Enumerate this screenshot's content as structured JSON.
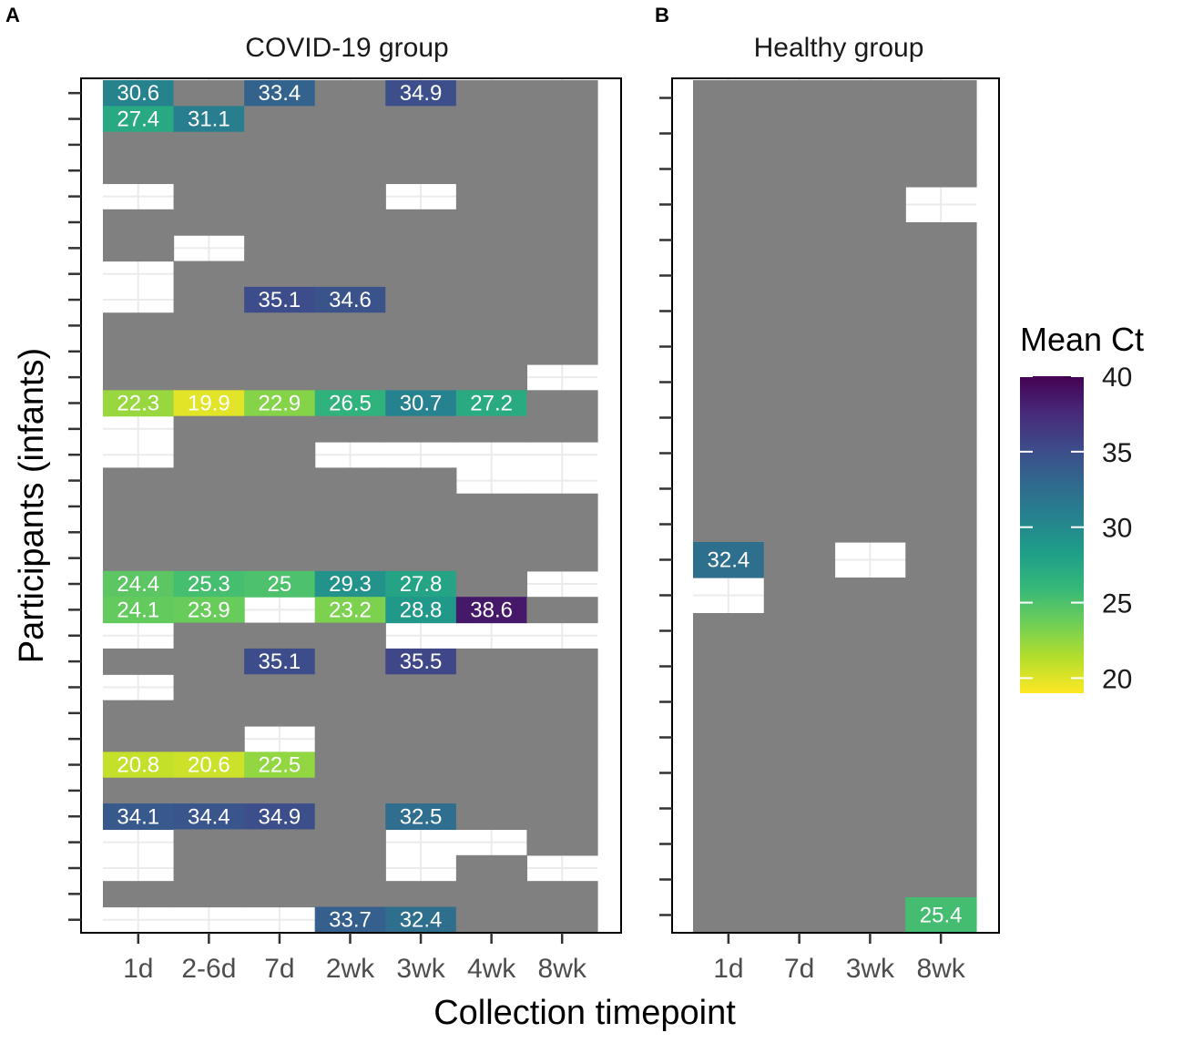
{
  "chart_data": {
    "type": "heatmap",
    "xlabel": "Collection timepoint",
    "ylabel": "Participants (infants)",
    "legend": {
      "title": "Mean Ct",
      "min": 19,
      "max": 40,
      "ticks": [
        20,
        25,
        30,
        35,
        40
      ],
      "colors": [
        "#FDE725",
        "#B5DE2B",
        "#6ECE58",
        "#35B779",
        "#1F9E89",
        "#26828E",
        "#31688E",
        "#3E4989",
        "#482878",
        "#440154"
      ],
      "missing_color": "#808080"
    },
    "panels": [
      {
        "letter": "A",
        "title": "COVID-19 group",
        "categories": [
          "1d",
          "2-6d",
          "7d",
          "2wk",
          "3wk",
          "4wk",
          "8wk"
        ],
        "row_count": 33,
        "value_rows": [
          [
            30.6,
            null,
            33.4,
            null,
            34.9,
            null,
            null
          ],
          [
            27.4,
            31.1,
            null,
            null,
            null,
            null,
            null
          ],
          [
            null,
            null,
            null,
            null,
            null,
            null,
            null
          ],
          [
            null,
            null,
            null,
            null,
            null,
            null,
            null
          ],
          [
            null,
            null,
            null,
            null,
            null,
            null,
            null
          ],
          [
            null,
            null,
            null,
            null,
            null,
            null,
            null
          ],
          [
            null,
            null,
            null,
            null,
            null,
            null,
            null
          ],
          [
            null,
            null,
            null,
            null,
            null,
            null,
            null
          ],
          [
            null,
            null,
            35.1,
            34.6,
            null,
            null,
            null
          ],
          [
            null,
            null,
            null,
            null,
            null,
            null,
            null
          ],
          [
            null,
            null,
            null,
            null,
            null,
            null,
            null
          ],
          [
            null,
            null,
            null,
            null,
            null,
            null,
            null
          ],
          [
            22.3,
            19.9,
            22.9,
            26.5,
            30.7,
            27.2,
            null
          ],
          [
            null,
            null,
            null,
            null,
            null,
            null,
            null
          ],
          [
            null,
            null,
            null,
            null,
            null,
            null,
            null
          ],
          [
            null,
            null,
            null,
            null,
            null,
            null,
            null
          ],
          [
            null,
            null,
            null,
            null,
            null,
            null,
            null
          ],
          [
            null,
            null,
            null,
            null,
            null,
            null,
            null
          ],
          [
            null,
            null,
            null,
            null,
            null,
            null,
            null
          ],
          [
            24.4,
            25.3,
            25,
            29.3,
            27.8,
            null,
            null
          ],
          [
            24.1,
            23.9,
            null,
            23.2,
            28.8,
            38.6,
            null
          ],
          [
            null,
            null,
            null,
            null,
            null,
            null,
            null
          ],
          [
            null,
            null,
            35.1,
            null,
            35.5,
            null,
            null
          ],
          [
            null,
            null,
            null,
            null,
            null,
            null,
            null
          ],
          [
            null,
            null,
            null,
            null,
            null,
            null,
            null
          ],
          [
            null,
            null,
            null,
            null,
            null,
            null,
            null
          ],
          [
            20.8,
            20.6,
            22.5,
            null,
            null,
            null,
            null
          ],
          [
            null,
            null,
            null,
            null,
            null,
            null,
            null
          ],
          [
            34.1,
            34.4,
            34.9,
            null,
            32.5,
            null,
            null
          ],
          [
            null,
            null,
            null,
            null,
            null,
            null,
            null
          ],
          [
            null,
            null,
            null,
            null,
            null,
            null,
            null
          ],
          [
            null,
            null,
            null,
            null,
            null,
            null,
            null
          ],
          [
            null,
            null,
            null,
            33.7,
            32.4,
            null,
            null
          ]
        ],
        "present_rows": [
          "1111111",
          "1111111",
          "1111111",
          "1111111",
          "0111011",
          "1111111",
          "1011111",
          "0111111",
          "0111111",
          "1111111",
          "1111111",
          "1111110",
          "1111111",
          "0111111",
          "0110000",
          "1111100",
          "1111111",
          "1111111",
          "1111111",
          "1111110",
          "1101111",
          "0111000",
          "1111111",
          "0111111",
          "1111111",
          "1101111",
          "1111111",
          "1111111",
          "1111111",
          "0111001",
          "0111010",
          "1111111",
          "0001111"
        ]
      },
      {
        "letter": "B",
        "title": "Healthy group",
        "categories": [
          "1d",
          "7d",
          "3wk",
          "8wk"
        ],
        "row_count": 24,
        "value_rows": [
          [
            null,
            null,
            null,
            null
          ],
          [
            null,
            null,
            null,
            null
          ],
          [
            null,
            null,
            null,
            null
          ],
          [
            null,
            null,
            null,
            null
          ],
          [
            null,
            null,
            null,
            null
          ],
          [
            null,
            null,
            null,
            null
          ],
          [
            null,
            null,
            null,
            null
          ],
          [
            null,
            null,
            null,
            null
          ],
          [
            null,
            null,
            null,
            null
          ],
          [
            null,
            null,
            null,
            null
          ],
          [
            null,
            null,
            null,
            null
          ],
          [
            null,
            null,
            null,
            null
          ],
          [
            null,
            null,
            null,
            null
          ],
          [
            32.4,
            null,
            null,
            null
          ],
          [
            null,
            null,
            null,
            null
          ],
          [
            null,
            null,
            null,
            null
          ],
          [
            null,
            null,
            null,
            null
          ],
          [
            null,
            null,
            null,
            null
          ],
          [
            null,
            null,
            null,
            null
          ],
          [
            null,
            null,
            null,
            null
          ],
          [
            null,
            null,
            null,
            null
          ],
          [
            null,
            null,
            null,
            null
          ],
          [
            null,
            null,
            null,
            null
          ],
          [
            null,
            null,
            null,
            25.4
          ]
        ],
        "present_rows": [
          "1111",
          "1111",
          "1111",
          "1110",
          "1111",
          "1111",
          "1111",
          "1111",
          "1111",
          "1111",
          "1111",
          "1111",
          "1111",
          "1101",
          "0111",
          "1111",
          "1111",
          "1111",
          "1111",
          "1111",
          "1111",
          "1111",
          "1111",
          "1111"
        ]
      }
    ]
  }
}
